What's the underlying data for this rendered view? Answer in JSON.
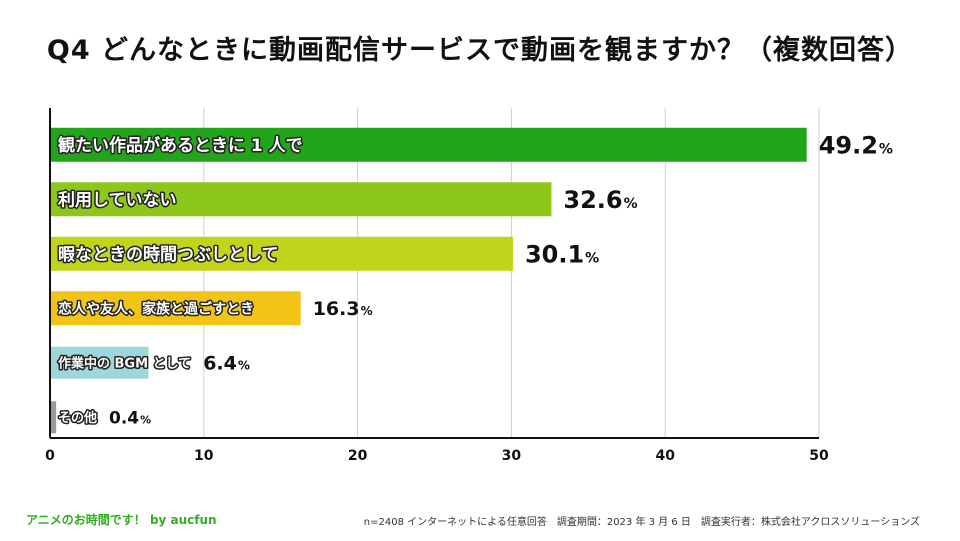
{
  "title": "Q4  どんなときに動画配信サービスで動画を観ますか？（複数回答）",
  "footer": {
    "brand": "アニメのお時間です！ by aucfun",
    "note": "n=2408 インターネットによる任意回答　調査期間：2023 年 3 月 6 日　調査実行者：株式会社アクロスソリューションズ"
  },
  "chart_data": {
    "type": "bar",
    "orientation": "horizontal",
    "categories": [
      "観たい作品があるときに 1 人で",
      "利用していない",
      "暇なときの時間つぶしとして",
      "恋人や友人、家族と過ごすとき",
      "作業中の BGM として",
      "その他"
    ],
    "values": [
      49.2,
      32.6,
      30.1,
      16.3,
      6.4,
      0.4
    ],
    "value_labels": [
      "49.2",
      "32.6",
      "30.1",
      "16.3",
      "6.4",
      "0.4"
    ],
    "unit": "%",
    "colors": [
      "#22a51a",
      "#8cc71a",
      "#c2d41a",
      "#f1c415",
      "#9ed6db",
      "#9a9a9a"
    ],
    "xlim": [
      0,
      50
    ],
    "xticks": [
      "0",
      "10",
      "20",
      "30",
      "40",
      "50"
    ],
    "grid": true
  }
}
